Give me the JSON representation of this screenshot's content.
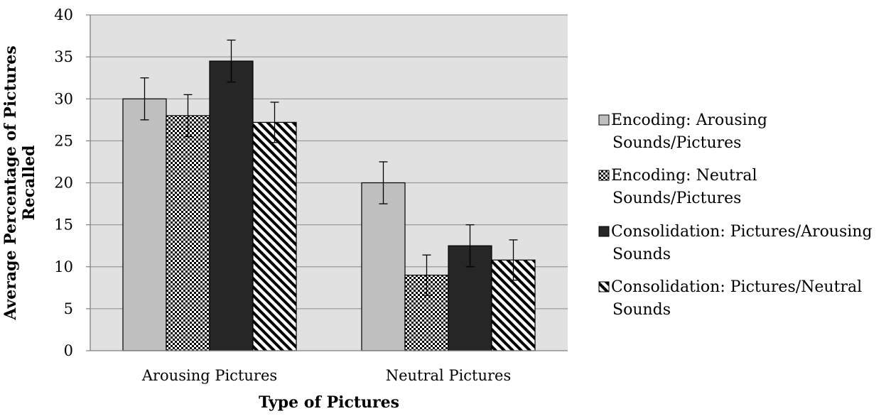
{
  "chart_data": {
    "type": "bar",
    "title": "",
    "xlabel": "Type of Pictures",
    "ylabel_lines": [
      "Average Percentage of Pictures",
      "Recalled"
    ],
    "ylim": [
      0,
      40
    ],
    "yticks": [
      0,
      5,
      10,
      15,
      20,
      25,
      30,
      35,
      40
    ],
    "categories": [
      "Arousing Pictures",
      "Neutral Pictures"
    ],
    "grid": true,
    "legend_position": "right",
    "series": [
      {
        "name": "Encoding:  Arousing Sounds/Pictures",
        "legend_lines": [
          "Encoding:  Arousing",
          "Sounds/Pictures"
        ],
        "fill": "solid-light-gray",
        "color": "#bfbfbf",
        "values": [
          30.0,
          20.0
        ],
        "error": [
          2.5,
          2.5
        ]
      },
      {
        "name": "Encoding: Neutral Sounds/Pictures",
        "legend_lines": [
          "Encoding: Neutral",
          "Sounds/Pictures"
        ],
        "fill": "checkerboard",
        "color": "#000000",
        "values": [
          28.0,
          9.0
        ],
        "error": [
          2.5,
          2.4
        ]
      },
      {
        "name": "Consolidation: Pictures/Arousing Sounds",
        "legend_lines": [
          "Consolidation: Pictures/Arousing",
          "Sounds"
        ],
        "fill": "solid-dark",
        "color": "#262626",
        "values": [
          34.5,
          12.5
        ],
        "error": [
          2.5,
          2.5
        ]
      },
      {
        "name": "Consolidation: Pictures/Neutral Sounds",
        "legend_lines": [
          "Consolidation: Pictures/Neutral",
          "Sounds"
        ],
        "fill": "diagonal-stripes",
        "color": "#000000",
        "values": [
          27.2,
          10.8
        ],
        "error": [
          2.4,
          2.4
        ]
      }
    ],
    "plot_background": "#e1e1e1",
    "gridline_color": "#9a9a9a"
  }
}
